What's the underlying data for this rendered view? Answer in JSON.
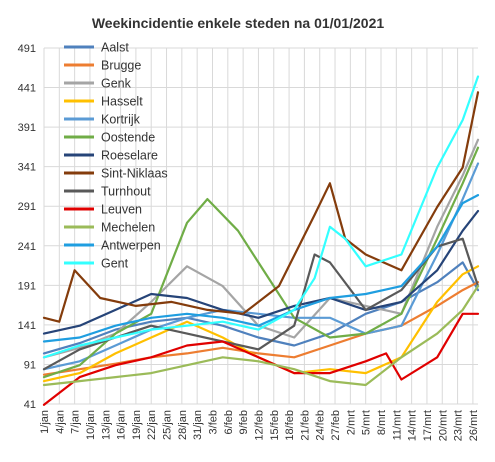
{
  "chart_data": {
    "type": "line",
    "title": "Weekincidentie  enkele steden na 01/01/2021",
    "xlabel": "",
    "ylabel": "",
    "ylim": [
      41,
      491
    ],
    "y_ticks": [
      41,
      91,
      141,
      191,
      241,
      291,
      341,
      391,
      441,
      491
    ],
    "x_range": [
      "2021-01-01",
      "2021-03-27"
    ],
    "x_ticks": [
      "1/jan",
      "4/jan",
      "7/jan",
      "10/jan",
      "13/jan",
      "16/jan",
      "19/jan",
      "22/jan",
      "25/jan",
      "28/jan",
      "31/jan",
      "3/feb",
      "6/feb",
      "9/feb",
      "12/feb",
      "15/feb",
      "18/feb",
      "21/feb",
      "24/feb",
      "27/feb",
      "2/mrt",
      "5/mrt",
      "8/mrt",
      "11/mrt",
      "14/mrt",
      "17/mrt",
      "20/mrt",
      "23/mrt",
      "26/mrt"
    ],
    "grid": true,
    "legend_position": "top-left",
    "series": [
      {
        "name": "Aalst",
        "color": "#4f81bd",
        "points": [
          [
            "2021-01-01",
            105
          ],
          [
            "2021-01-08",
            118
          ],
          [
            "2021-01-15",
            135
          ],
          [
            "2021-01-22",
            145
          ],
          [
            "2021-01-29",
            150
          ],
          [
            "2021-02-05",
            140
          ],
          [
            "2021-02-12",
            125
          ],
          [
            "2021-02-19",
            115
          ],
          [
            "2021-02-26",
            130
          ],
          [
            "2021-03-05",
            155
          ],
          [
            "2021-03-12",
            170
          ],
          [
            "2021-03-19",
            195
          ],
          [
            "2021-03-24",
            220
          ],
          [
            "2021-03-27",
            185
          ]
        ]
      },
      {
        "name": "Brugge",
        "color": "#ed7d31",
        "points": [
          [
            "2021-01-01",
            78
          ],
          [
            "2021-01-08",
            85
          ],
          [
            "2021-01-15",
            92
          ],
          [
            "2021-01-22",
            100
          ],
          [
            "2021-01-29",
            105
          ],
          [
            "2021-02-05",
            112
          ],
          [
            "2021-02-12",
            105
          ],
          [
            "2021-02-19",
            100
          ],
          [
            "2021-02-26",
            115
          ],
          [
            "2021-03-05",
            130
          ],
          [
            "2021-03-12",
            140
          ],
          [
            "2021-03-19",
            165
          ],
          [
            "2021-03-24",
            185
          ],
          [
            "2021-03-27",
            195
          ]
        ]
      },
      {
        "name": "Genk",
        "color": "#a5a5a5",
        "points": [
          [
            "2021-01-01",
            100
          ],
          [
            "2021-01-08",
            112
          ],
          [
            "2021-01-15",
            130
          ],
          [
            "2021-01-22",
            170
          ],
          [
            "2021-01-29",
            215
          ],
          [
            "2021-02-05",
            190
          ],
          [
            "2021-02-12",
            140
          ],
          [
            "2021-02-19",
            125
          ],
          [
            "2021-02-26",
            175
          ],
          [
            "2021-03-05",
            165
          ],
          [
            "2021-03-12",
            155
          ],
          [
            "2021-03-19",
            265
          ],
          [
            "2021-03-24",
            330
          ],
          [
            "2021-03-27",
            375
          ]
        ]
      },
      {
        "name": "Hasselt",
        "color": "#ffc000",
        "points": [
          [
            "2021-01-01",
            70
          ],
          [
            "2021-01-08",
            80
          ],
          [
            "2021-01-15",
            105
          ],
          [
            "2021-01-22",
            125
          ],
          [
            "2021-01-29",
            145
          ],
          [
            "2021-02-05",
            125
          ],
          [
            "2021-02-12",
            100
          ],
          [
            "2021-02-19",
            80
          ],
          [
            "2021-02-26",
            85
          ],
          [
            "2021-03-05",
            80
          ],
          [
            "2021-03-12",
            100
          ],
          [
            "2021-03-19",
            170
          ],
          [
            "2021-03-24",
            205
          ],
          [
            "2021-03-27",
            215
          ]
        ]
      },
      {
        "name": "Kortrijk",
        "color": "#5b9bd5",
        "points": [
          [
            "2021-01-01",
            85
          ],
          [
            "2021-01-08",
            95
          ],
          [
            "2021-01-15",
            115
          ],
          [
            "2021-01-22",
            135
          ],
          [
            "2021-01-29",
            150
          ],
          [
            "2021-02-05",
            160
          ],
          [
            "2021-02-12",
            155
          ],
          [
            "2021-02-19",
            150
          ],
          [
            "2021-02-26",
            150
          ],
          [
            "2021-03-05",
            130
          ],
          [
            "2021-03-12",
            140
          ],
          [
            "2021-03-19",
            230
          ],
          [
            "2021-03-24",
            300
          ],
          [
            "2021-03-27",
            345
          ]
        ]
      },
      {
        "name": "Oostende",
        "color": "#70ad47",
        "points": [
          [
            "2021-01-01",
            75
          ],
          [
            "2021-01-08",
            90
          ],
          [
            "2021-01-15",
            130
          ],
          [
            "2021-01-22",
            155
          ],
          [
            "2021-01-29",
            270
          ],
          [
            "2021-02-02",
            300
          ],
          [
            "2021-02-08",
            260
          ],
          [
            "2021-02-12",
            220
          ],
          [
            "2021-02-19",
            150
          ],
          [
            "2021-02-26",
            125
          ],
          [
            "2021-03-05",
            130
          ],
          [
            "2021-03-12",
            155
          ],
          [
            "2021-03-19",
            250
          ],
          [
            "2021-03-24",
            320
          ],
          [
            "2021-03-27",
            365
          ]
        ]
      },
      {
        "name": "Roeselare",
        "color": "#264478",
        "points": [
          [
            "2021-01-01",
            130
          ],
          [
            "2021-01-08",
            140
          ],
          [
            "2021-01-15",
            160
          ],
          [
            "2021-01-22",
            180
          ],
          [
            "2021-01-29",
            175
          ],
          [
            "2021-02-05",
            160
          ],
          [
            "2021-02-12",
            150
          ],
          [
            "2021-02-19",
            165
          ],
          [
            "2021-02-26",
            175
          ],
          [
            "2021-03-05",
            160
          ],
          [
            "2021-03-12",
            170
          ],
          [
            "2021-03-19",
            210
          ],
          [
            "2021-03-24",
            260
          ],
          [
            "2021-03-27",
            285
          ]
        ]
      },
      {
        "name": "Sint-Niklaas",
        "color": "#843c0c",
        "points": [
          [
            "2021-01-01",
            150
          ],
          [
            "2021-01-04",
            145
          ],
          [
            "2021-01-07",
            210
          ],
          [
            "2021-01-12",
            175
          ],
          [
            "2021-01-19",
            165
          ],
          [
            "2021-01-26",
            170
          ],
          [
            "2021-02-02",
            160
          ],
          [
            "2021-02-09",
            155
          ],
          [
            "2021-02-16",
            190
          ],
          [
            "2021-02-23",
            280
          ],
          [
            "2021-02-26",
            320
          ],
          [
            "2021-03-01",
            250
          ],
          [
            "2021-03-05",
            230
          ],
          [
            "2021-03-12",
            210
          ],
          [
            "2021-03-19",
            290
          ],
          [
            "2021-03-24",
            340
          ],
          [
            "2021-03-27",
            435
          ]
        ]
      },
      {
        "name": "Turnhout",
        "color": "#595959",
        "points": [
          [
            "2021-01-01",
            85
          ],
          [
            "2021-01-08",
            110
          ],
          [
            "2021-01-15",
            125
          ],
          [
            "2021-01-22",
            140
          ],
          [
            "2021-01-29",
            130
          ],
          [
            "2021-02-05",
            120
          ],
          [
            "2021-02-12",
            110
          ],
          [
            "2021-02-19",
            140
          ],
          [
            "2021-02-23",
            230
          ],
          [
            "2021-02-26",
            220
          ],
          [
            "2021-03-05",
            160
          ],
          [
            "2021-03-12",
            185
          ],
          [
            "2021-03-19",
            240
          ],
          [
            "2021-03-24",
            250
          ],
          [
            "2021-03-27",
            190
          ]
        ]
      },
      {
        "name": "Leuven",
        "color": "#e00000",
        "points": [
          [
            "2021-01-01",
            40
          ],
          [
            "2021-01-08",
            75
          ],
          [
            "2021-01-15",
            90
          ],
          [
            "2021-01-22",
            100
          ],
          [
            "2021-01-29",
            115
          ],
          [
            "2021-02-05",
            120
          ],
          [
            "2021-02-12",
            100
          ],
          [
            "2021-02-19",
            80
          ],
          [
            "2021-02-26",
            80
          ],
          [
            "2021-03-05",
            95
          ],
          [
            "2021-03-09",
            105
          ],
          [
            "2021-03-12",
            72
          ],
          [
            "2021-03-19",
            100
          ],
          [
            "2021-03-24",
            155
          ],
          [
            "2021-03-27",
            155
          ]
        ]
      },
      {
        "name": "Mechelen",
        "color": "#9bbb59",
        "points": [
          [
            "2021-01-01",
            65
          ],
          [
            "2021-01-08",
            70
          ],
          [
            "2021-01-15",
            75
          ],
          [
            "2021-01-22",
            80
          ],
          [
            "2021-01-29",
            90
          ],
          [
            "2021-02-05",
            100
          ],
          [
            "2021-02-12",
            95
          ],
          [
            "2021-02-19",
            85
          ],
          [
            "2021-02-26",
            70
          ],
          [
            "2021-03-05",
            65
          ],
          [
            "2021-03-12",
            100
          ],
          [
            "2021-03-19",
            130
          ],
          [
            "2021-03-24",
            160
          ],
          [
            "2021-03-27",
            190
          ]
        ]
      },
      {
        "name": "Antwerpen",
        "color": "#1f9ee0",
        "points": [
          [
            "2021-01-01",
            120
          ],
          [
            "2021-01-08",
            125
          ],
          [
            "2021-01-15",
            140
          ],
          [
            "2021-01-22",
            150
          ],
          [
            "2021-01-29",
            155
          ],
          [
            "2021-02-05",
            150
          ],
          [
            "2021-02-12",
            140
          ],
          [
            "2021-02-19",
            160
          ],
          [
            "2021-02-26",
            175
          ],
          [
            "2021-03-05",
            180
          ],
          [
            "2021-03-12",
            190
          ],
          [
            "2021-03-19",
            240
          ],
          [
            "2021-03-24",
            295
          ],
          [
            "2021-03-27",
            305
          ]
        ]
      },
      {
        "name": "Gent",
        "color": "#33ffff",
        "points": [
          [
            "2021-01-01",
            100
          ],
          [
            "2021-01-08",
            115
          ],
          [
            "2021-01-15",
            125
          ],
          [
            "2021-01-22",
            135
          ],
          [
            "2021-01-29",
            140
          ],
          [
            "2021-02-05",
            145
          ],
          [
            "2021-02-12",
            135
          ],
          [
            "2021-02-19",
            160
          ],
          [
            "2021-02-23",
            200
          ],
          [
            "2021-02-26",
            265
          ],
          [
            "2021-03-01",
            250
          ],
          [
            "2021-03-05",
            215
          ],
          [
            "2021-03-12",
            230
          ],
          [
            "2021-03-19",
            340
          ],
          [
            "2021-03-24",
            400
          ],
          [
            "2021-03-27",
            455
          ]
        ]
      }
    ]
  }
}
